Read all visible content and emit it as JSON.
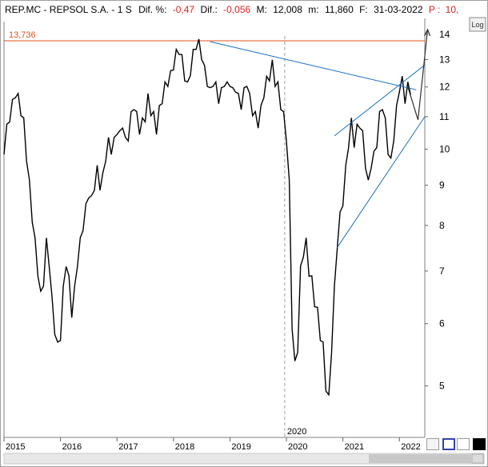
{
  "header": {
    "symbol": "REP.MC - REPSOL  S.A. -  1 S",
    "dif_pct_label": "Dif. %:",
    "dif_pct_value": "-0,47",
    "dif_label": "Dif.:",
    "dif_value": "-0,056",
    "m_label": "M:",
    "m_value": "12,008",
    "min_label": "m:",
    "min_value": "11,860",
    "date_label": "F:",
    "date_value": "31-03-2022",
    "p_label": "P :",
    "p_value": "10,"
  },
  "log_button": "Log",
  "colors": {
    "price": "#000000",
    "resistance": "#e0501a",
    "trendline": "#1a6fc4",
    "negative": "#e02020"
  },
  "chart_data": {
    "type": "line",
    "y_scale": "log",
    "ylim": [
      4.3,
      14.6
    ],
    "xlim": [
      2015.0,
      2022.45
    ],
    "y_ticks": [
      5,
      6,
      7,
      8,
      9,
      10,
      11,
      12,
      13,
      14
    ],
    "x_ticks": [
      {
        "label": "2015",
        "x": 2015.0
      },
      {
        "label": "2016",
        "x": 2016.0
      },
      {
        "label": "2017",
        "x": 2017.0
      },
      {
        "label": "2018",
        "x": 2018.0
      },
      {
        "label": "2019",
        "x": 2019.0
      },
      {
        "label": "2020",
        "x": 2020.0
      },
      {
        "label": "2021",
        "x": 2021.0
      },
      {
        "label": "2022",
        "x": 2022.0
      }
    ],
    "marker": {
      "label": "2020",
      "x": 2019.97
    },
    "resistance": {
      "label": "13,736",
      "value": 13.736
    },
    "series": [
      {
        "x": [
          2015.0,
          2015.05,
          2015.1,
          2015.15,
          2015.2,
          2015.25,
          2015.3,
          2015.35,
          2015.4,
          2015.45,
          2015.5,
          2015.55,
          2015.6,
          2015.65,
          2015.7,
          2015.75,
          2015.8,
          2015.85,
          2015.9,
          2015.95,
          2016.0,
          2016.05,
          2016.1,
          2016.15,
          2016.2,
          2016.25,
          2016.3,
          2016.35,
          2016.4,
          2016.45,
          2016.5,
          2016.55,
          2016.6,
          2016.65,
          2016.7,
          2016.75,
          2016.8,
          2016.85,
          2016.9,
          2016.95,
          2017.0,
          2017.05,
          2017.1,
          2017.15,
          2017.2,
          2017.25,
          2017.3,
          2017.35,
          2017.4,
          2017.45,
          2017.5,
          2017.55,
          2017.6,
          2017.65,
          2017.7,
          2017.75,
          2017.8,
          2017.85,
          2017.9,
          2017.95,
          2018.0,
          2018.05,
          2018.1,
          2018.15,
          2018.2,
          2018.25,
          2018.3,
          2018.35,
          2018.4,
          2018.45,
          2018.5,
          2018.55,
          2018.6,
          2018.65,
          2018.7,
          2018.75,
          2018.8,
          2018.85,
          2018.9,
          2018.95,
          2019.0,
          2019.05,
          2019.1,
          2019.15,
          2019.2,
          2019.25,
          2019.3,
          2019.35,
          2019.4,
          2019.45,
          2019.5,
          2019.55,
          2019.6,
          2019.65,
          2019.7,
          2019.75,
          2019.8,
          2019.85,
          2019.9,
          2019.95,
          2020.0,
          2020.05,
          2020.1,
          2020.15,
          2020.2,
          2020.25,
          2020.3,
          2020.35,
          2020.4,
          2020.45,
          2020.5,
          2020.55,
          2020.6,
          2020.65,
          2020.7,
          2020.75,
          2020.8,
          2020.85,
          2020.9,
          2020.95,
          2021.0,
          2021.05,
          2021.1,
          2021.15,
          2021.2,
          2021.25,
          2021.3,
          2021.35,
          2021.4,
          2021.45,
          2021.5,
          2021.55,
          2021.6,
          2021.65,
          2021.7,
          2021.75,
          2021.8,
          2021.85,
          2021.9,
          2021.95,
          2022.0,
          2022.05,
          2022.1,
          2022.15,
          2022.2
        ],
        "values": [
          10.0,
          10.6,
          11.0,
          11.4,
          11.8,
          11.6,
          11.2,
          10.8,
          9.8,
          9.0,
          8.2,
          7.6,
          7.0,
          6.5,
          6.8,
          7.6,
          7.2,
          6.4,
          5.9,
          5.6,
          5.8,
          6.6,
          7.2,
          6.8,
          6.2,
          6.6,
          7.2,
          7.6,
          8.0,
          8.4,
          8.8,
          8.6,
          9.0,
          9.4,
          9.0,
          9.2,
          9.8,
          10.2,
          10.0,
          10.2,
          10.6,
          10.4,
          10.8,
          10.2,
          10.4,
          11.0,
          11.4,
          11.0,
          10.6,
          10.8,
          11.0,
          11.6,
          11.2,
          11.0,
          10.6,
          11.2,
          11.6,
          12.0,
          12.2,
          12.4,
          12.8,
          13.2,
          13.4,
          13.0,
          12.4,
          12.0,
          12.6,
          13.2,
          13.6,
          13.6,
          13.2,
          12.6,
          12.2,
          11.8,
          12.2,
          12.0,
          11.6,
          11.8,
          12.2,
          12.0,
          12.2,
          11.8,
          12.0,
          11.6,
          11.4,
          11.8,
          12.2,
          11.6,
          11.2,
          11.0,
          10.8,
          11.2,
          11.8,
          12.2,
          12.4,
          12.8,
          12.2,
          12.0,
          11.4,
          11.0,
          10.4,
          9.0,
          6.0,
          5.3,
          5.6,
          7.0,
          7.4,
          7.6,
          7.0,
          6.8,
          6.4,
          6.2,
          5.8,
          5.6,
          5.0,
          4.8,
          5.6,
          6.6,
          7.6,
          8.2,
          8.6,
          9.4,
          10.2,
          10.8,
          10.2,
          10.6,
          10.8,
          10.4,
          9.6,
          9.0,
          9.6,
          9.8,
          10.2,
          11.0,
          11.4,
          10.8,
          10.0,
          9.6,
          10.4,
          11.2,
          12.0,
          12.2,
          11.6,
          12.0,
          11.9
        ]
      }
    ]
  }
}
